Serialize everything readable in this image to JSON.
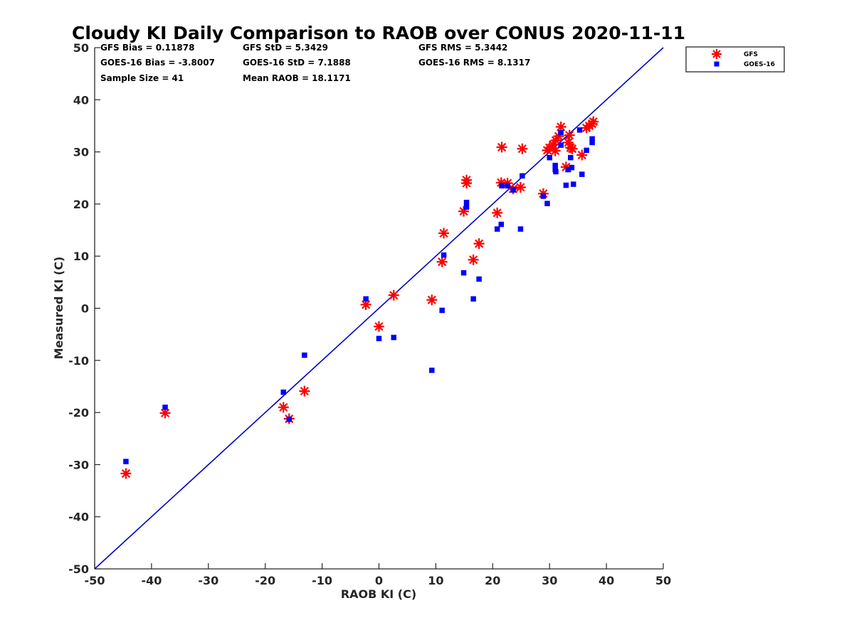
{
  "chart_data": {
    "type": "scatter",
    "title": "Cloudy KI Daily Comparison to RAOB over CONUS 2020-11-11",
    "xlabel": "RAOB KI (C)",
    "ylabel": "Measured KI (C)",
    "xlim": [
      -50,
      50
    ],
    "ylim": [
      -50,
      50
    ],
    "xticks": [
      "-50",
      "-40",
      "-30",
      "-20",
      "-10",
      "0",
      "10",
      "20",
      "30",
      "40",
      "50"
    ],
    "yticks": [
      "50",
      "40",
      "30",
      "20",
      "10",
      "0",
      "-10",
      "-20",
      "-30",
      "-40",
      "-50"
    ],
    "grid": false,
    "legend_position": "outside-top-right",
    "reference_line": {
      "from": [
        -50,
        -50
      ],
      "to": [
        50,
        50
      ],
      "color": "#0000cc"
    },
    "stats": [
      "GFS Bias = 0.11878",
      "GFS StD = 5.3429",
      "GFS RMS = 5.3442",
      "GOES-16 Bias = -3.8007",
      "GOES-16 StD = 7.1888",
      "GOES-16 RMS = 8.1317",
      "Sample Size = 41",
      "Mean RAOB = 18.1171"
    ],
    "series": [
      {
        "name": "GFS",
        "marker": "asterisk",
        "color": "#ff0000",
        "x": [
          -44.5,
          -37.6,
          -16.8,
          -15.8,
          -13.1,
          -2.3,
          0.0,
          2.6,
          9.3,
          11.1,
          11.4,
          14.9,
          15.4,
          15.4,
          16.6,
          17.6,
          20.8,
          21.5,
          21.6,
          22.6,
          23.6,
          24.9,
          25.2,
          28.9,
          29.6,
          30.0,
          30.6,
          31.0,
          31.1,
          31.6,
          32.0,
          32.9,
          33.3,
          33.5,
          33.7,
          34.0,
          35.7,
          36.5,
          37.0,
          37.5,
          37.7
        ],
        "y": [
          -31.7,
          -20.1,
          -19.0,
          -21.2,
          -15.9,
          0.7,
          -3.5,
          2.5,
          1.6,
          8.9,
          14.4,
          18.6,
          24.0,
          24.6,
          9.3,
          12.4,
          18.3,
          24.1,
          30.9,
          24.0,
          22.9,
          23.2,
          30.6,
          22.0,
          30.3,
          30.8,
          31.4,
          30.2,
          32.2,
          33.0,
          34.8,
          27.1,
          31.8,
          33.2,
          30.8,
          30.6,
          29.4,
          34.6,
          35.0,
          35.4,
          35.8
        ]
      },
      {
        "name": "GOES-16",
        "marker": "square",
        "color": "#0000ff",
        "x": [
          -44.5,
          -37.6,
          -16.8,
          -15.8,
          -13.1,
          -2.3,
          0.0,
          2.6,
          9.3,
          11.1,
          11.4,
          14.9,
          15.4,
          15.4,
          16.6,
          17.6,
          20.8,
          21.5,
          21.6,
          22.6,
          23.6,
          24.9,
          25.2,
          28.9,
          29.6,
          30.0,
          31.0,
          31.0,
          31.1,
          32.0,
          32.0,
          32.9,
          33.3,
          33.7,
          33.9,
          34.2,
          35.3,
          35.7,
          36.5,
          37.5,
          37.5
        ],
        "y": [
          -29.4,
          -19.0,
          -16.1,
          -21.3,
          -9.0,
          1.8,
          -5.8,
          -5.6,
          -11.9,
          -0.4,
          10.2,
          6.8,
          19.4,
          20.3,
          1.8,
          5.6,
          15.2,
          16.1,
          23.5,
          23.5,
          22.7,
          15.2,
          25.4,
          21.5,
          20.1,
          28.9,
          26.6,
          27.4,
          26.2,
          31.3,
          33.7,
          23.6,
          26.6,
          28.9,
          27.0,
          23.8,
          34.2,
          25.7,
          30.3,
          31.8,
          32.5
        ]
      }
    ]
  }
}
